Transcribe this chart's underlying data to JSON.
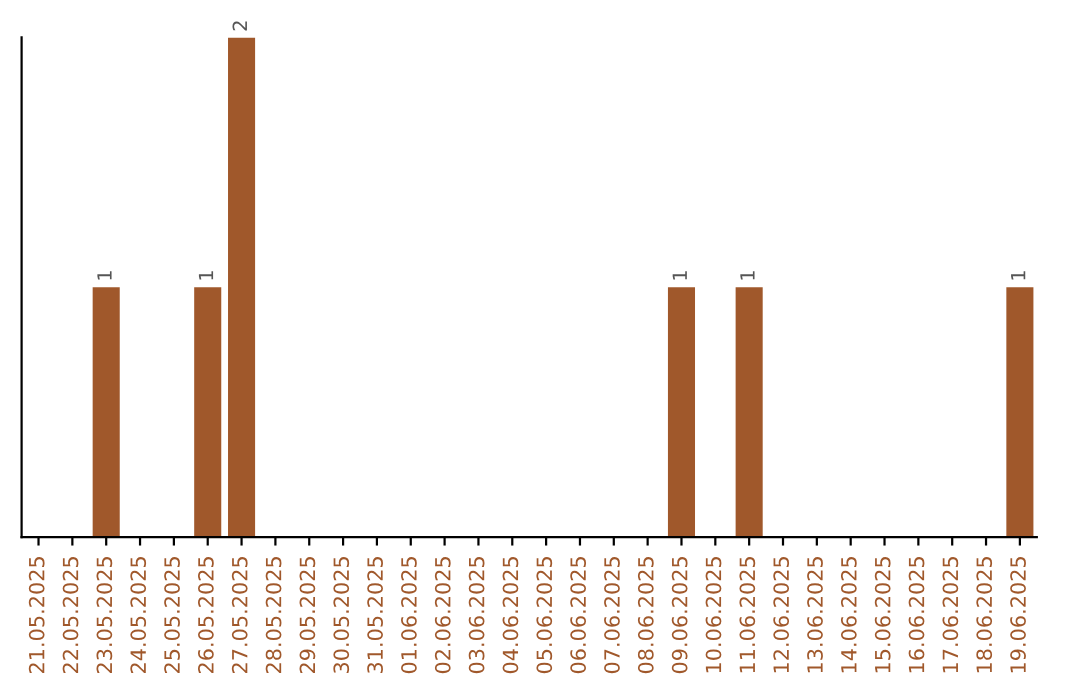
{
  "chart_data": {
    "type": "bar",
    "categories": [
      "21.05.2025",
      "22.05.2025",
      "23.05.2025",
      "24.05.2025",
      "25.05.2025",
      "26.05.2025",
      "27.05.2025",
      "28.05.2025",
      "29.05.2025",
      "30.05.2025",
      "31.05.2025",
      "01.06.2025",
      "02.06.2025",
      "03.06.2025",
      "04.06.2025",
      "05.06.2025",
      "06.06.2025",
      "07.06.2025",
      "08.06.2025",
      "09.06.2025",
      "10.06.2025",
      "11.06.2025",
      "12.06.2025",
      "13.06.2025",
      "14.06.2025",
      "15.06.2025",
      "16.06.2025",
      "17.06.2025",
      "18.06.2025",
      "19.06.2025"
    ],
    "values": [
      0,
      0,
      1,
      0,
      0,
      1,
      2,
      0,
      0,
      0,
      0,
      0,
      0,
      0,
      0,
      0,
      0,
      0,
      0,
      1,
      0,
      1,
      0,
      0,
      0,
      0,
      0,
      0,
      0,
      1
    ],
    "value_labels": [
      null,
      null,
      "1",
      null,
      null,
      "1",
      "2",
      null,
      null,
      null,
      null,
      null,
      null,
      null,
      null,
      null,
      null,
      null,
      null,
      "1",
      null,
      "1",
      null,
      null,
      null,
      null,
      null,
      null,
      null,
      "1"
    ],
    "color": "#a0582b",
    "tick_labels": "x",
    "grid": false,
    "legend": false
  }
}
